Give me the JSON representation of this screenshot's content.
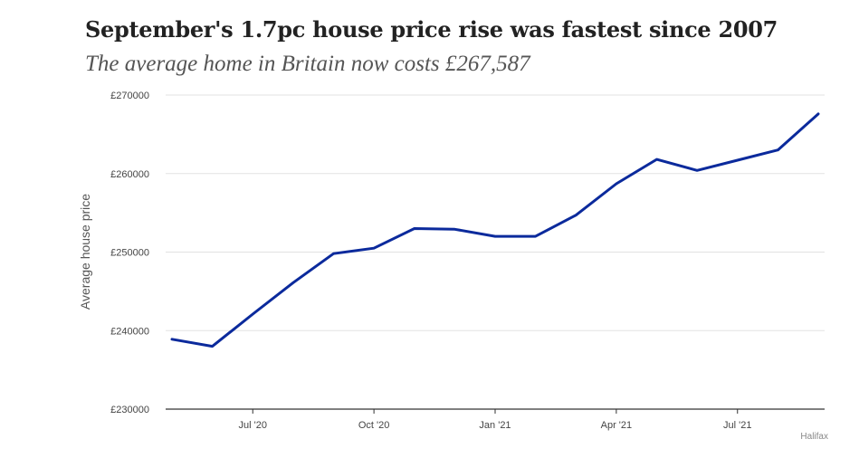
{
  "chart_data": {
    "type": "line",
    "title": "September's 1.7pc house price rise was fastest since 2007",
    "subtitle": "The average home in Britain now costs £267,587",
    "xlabel": "",
    "ylabel": "Average house price",
    "source": "Halifax",
    "ylim": [
      230000,
      270000
    ],
    "yticks": [
      230000,
      240000,
      250000,
      260000,
      270000
    ],
    "ytick_labels": [
      "£230000",
      "£240000",
      "£250000",
      "£260000",
      "£270000"
    ],
    "xticks": [
      "2020-07",
      "2020-10",
      "2021-01",
      "2021-04",
      "2021-07"
    ],
    "xtick_labels": [
      "Jul '20",
      "Oct '20",
      "Jan '21",
      "Apr '21",
      "Jul '21"
    ],
    "xlim": [
      "2020-05",
      "2021-09"
    ],
    "grid": true,
    "color": "#0b2a9c",
    "series": [
      {
        "x": [
          "2020-05",
          "2020-06",
          "2020-07",
          "2020-08",
          "2020-09",
          "2020-10",
          "2020-11",
          "2020-12",
          "2021-01",
          "2021-02",
          "2021-03",
          "2021-04",
          "2021-05",
          "2021-06",
          "2021-07",
          "2021-08",
          "2021-09"
        ],
        "values": [
          238900,
          238000,
          242100,
          246100,
          249800,
          250500,
          253000,
          252900,
          252000,
          252000,
          254700,
          258700,
          261800,
          260400,
          261700,
          263000,
          267587
        ]
      }
    ]
  }
}
